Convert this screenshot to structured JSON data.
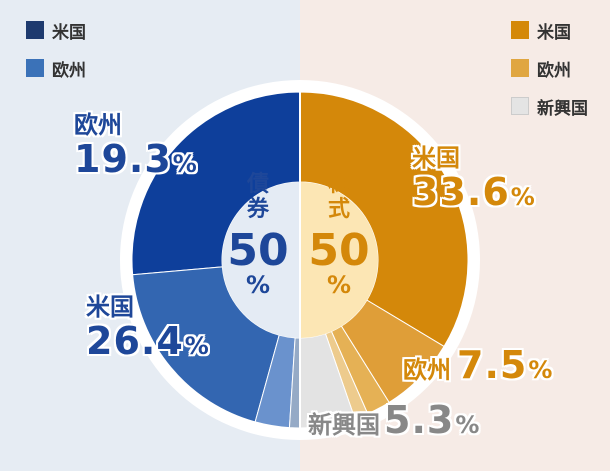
{
  "colors": {
    "bg_left": "#e6ecf3",
    "bg_right": "#f6ebe6",
    "bond_center": "#e4ebf4",
    "stock_center": "#fce6b4",
    "bond_text": "#1e4799",
    "stock_text": "#d4880a",
    "emerging_text": "#888888"
  },
  "legend_left": [
    {
      "label": "米国",
      "color": "#1e3a6e"
    },
    {
      "label": "欧州",
      "color": "#3b72b8"
    }
  ],
  "legend_right": [
    {
      "label": "米国",
      "color": "#d4880a"
    },
    {
      "label": "欧州",
      "color": "#e0a640"
    },
    {
      "label": "新興国",
      "color": "#e4e4e4"
    }
  ],
  "center": {
    "bond_label": "債券",
    "bond_value": "50",
    "stock_label": "株式",
    "stock_value": "50",
    "percent": "%"
  },
  "labels": {
    "bond_europe": {
      "name": "欧州",
      "value": "19.3",
      "pct": "%"
    },
    "bond_us": {
      "name": "米国",
      "value": "26.4",
      "pct": "%"
    },
    "stock_us": {
      "name": "米国",
      "value": "33.6",
      "pct": "%"
    },
    "stock_europe": {
      "name": "欧州",
      "value": "7.5",
      "pct": "%"
    },
    "stock_emerging": {
      "name": "新興国",
      "value": "5.3",
      "pct": "%"
    }
  },
  "chart_data": {
    "type": "pie",
    "series": [
      {
        "name": "債券",
        "total": 50,
        "slices": [
          {
            "name": "米国",
            "value": 26.4,
            "color": "#0e3f9b"
          },
          {
            "name": "欧州",
            "value": 19.3,
            "color": "#3366b1"
          },
          {
            "name": "",
            "value": 3.3,
            "color": "#6a92cd"
          },
          {
            "name": "",
            "value": 1.0,
            "color": "#95aac6"
          }
        ]
      },
      {
        "name": "株式",
        "total": 50,
        "slices": [
          {
            "name": "米国",
            "value": 33.6,
            "color": "#d4880a"
          },
          {
            "name": "欧州",
            "value": 7.5,
            "color": "#df9e38"
          },
          {
            "name": "",
            "value": 2.3,
            "color": "#e5b155"
          },
          {
            "name": "",
            "value": 1.3,
            "color": "#edcb8d"
          },
          {
            "name": "新興国",
            "value": 5.3,
            "color": "#e3e3e3"
          }
        ]
      }
    ]
  }
}
